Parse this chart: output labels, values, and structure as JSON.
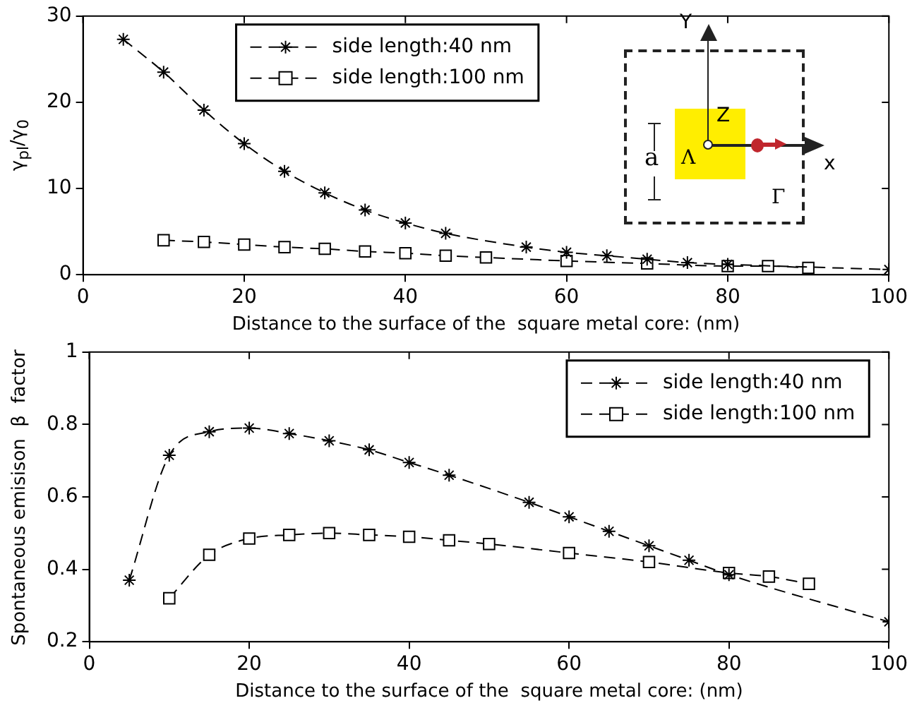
{
  "chart_data": [
    {
      "type": "line",
      "ylabel": "γ$_{pl}$/γ$_{0}$",
      "xlabel": "Distance to the surface of the  square metal core: (nm)",
      "xlim": [
        0,
        100
      ],
      "xticks": [
        0,
        20,
        40,
        60,
        80,
        100
      ],
      "ylim": [
        0,
        30
      ],
      "yticks": [
        0,
        10,
        20,
        30
      ],
      "legend": "top left",
      "line_style": "dashed",
      "grid": false,
      "annotations": [
        "Y",
        "Z",
        "x",
        "a",
        "Λ",
        "Γ"
      ],
      "series": [
        {
          "name": "side length:40 nm",
          "color": "#000000",
          "marker": "cross",
          "x": [
            5,
            10,
            15,
            20,
            25,
            30,
            35,
            40,
            45,
            55,
            60,
            65,
            70,
            75,
            80,
            100
          ],
          "values": [
            27.3,
            23.5,
            19.1,
            15.2,
            12.0,
            9.5,
            7.5,
            6.0,
            4.8,
            3.2,
            2.6,
            2.2,
            1.8,
            1.4,
            1.2,
            0.6
          ]
        },
        {
          "name": "side length:100 nm",
          "color": "#000000",
          "marker": "square",
          "x": [
            10,
            15,
            20,
            25,
            30,
            35,
            40,
            45,
            50,
            60,
            70,
            80,
            85,
            90
          ],
          "values": [
            4.0,
            3.8,
            3.5,
            3.2,
            3.0,
            2.7,
            2.5,
            2.2,
            2.0,
            1.6,
            1.3,
            1.0,
            1.0,
            0.8
          ]
        }
      ]
    },
    {
      "type": "line",
      "ylabel": "Spontaneous emisison  β  factor",
      "xlabel": "Distance to the surface of the  square metal core: (nm)",
      "xlim": [
        0,
        100
      ],
      "xticks": [
        0,
        20,
        40,
        60,
        80,
        100
      ],
      "ylim": [
        0.2,
        1
      ],
      "yticks": [
        0.2,
        0.4,
        0.6,
        0.8,
        1
      ],
      "legend": "top right",
      "line_style": "dashed",
      "grid": false,
      "series": [
        {
          "name": "side length:40 nm",
          "color": "#000000",
          "marker": "cross",
          "x": [
            5,
            10,
            15,
            20,
            25,
            30,
            35,
            40,
            45,
            55,
            60,
            65,
            70,
            75,
            80,
            100
          ],
          "values": [
            0.37,
            0.715,
            0.78,
            0.79,
            0.775,
            0.755,
            0.73,
            0.695,
            0.66,
            0.585,
            0.545,
            0.505,
            0.465,
            0.425,
            0.385,
            0.255
          ]
        },
        {
          "name": "side length:100 nm",
          "color": "#000000",
          "marker": "square",
          "x": [
            10,
            15,
            20,
            25,
            30,
            35,
            40,
            45,
            50,
            60,
            70,
            80,
            85,
            90
          ],
          "values": [
            0.32,
            0.44,
            0.485,
            0.495,
            0.5,
            0.495,
            0.49,
            0.48,
            0.47,
            0.445,
            0.42,
            0.39,
            0.38,
            0.36
          ]
        }
      ]
    }
  ]
}
